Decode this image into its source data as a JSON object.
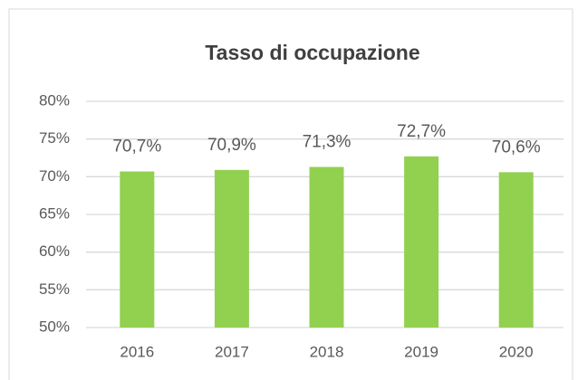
{
  "chart_data": {
    "type": "bar",
    "title": "Tasso di occupazione",
    "categories": [
      "2016",
      "2017",
      "2018",
      "2019",
      "2020"
    ],
    "values": [
      70.7,
      70.9,
      71.3,
      72.7,
      70.6
    ],
    "value_labels": [
      "70,7%",
      "70,9%",
      "71,3%",
      "72,7%",
      "70,6%"
    ],
    "color": "#92d050",
    "ylim": [
      50,
      80
    ],
    "yticks": [
      {
        "value": 50,
        "label": "50%"
      },
      {
        "value": 55,
        "label": "55%"
      },
      {
        "value": 60,
        "label": "60%"
      },
      {
        "value": 65,
        "label": "65%"
      },
      {
        "value": 70,
        "label": "70%"
      },
      {
        "value": 75,
        "label": "75%"
      },
      {
        "value": 80,
        "label": "80%"
      }
    ],
    "grid": true
  }
}
